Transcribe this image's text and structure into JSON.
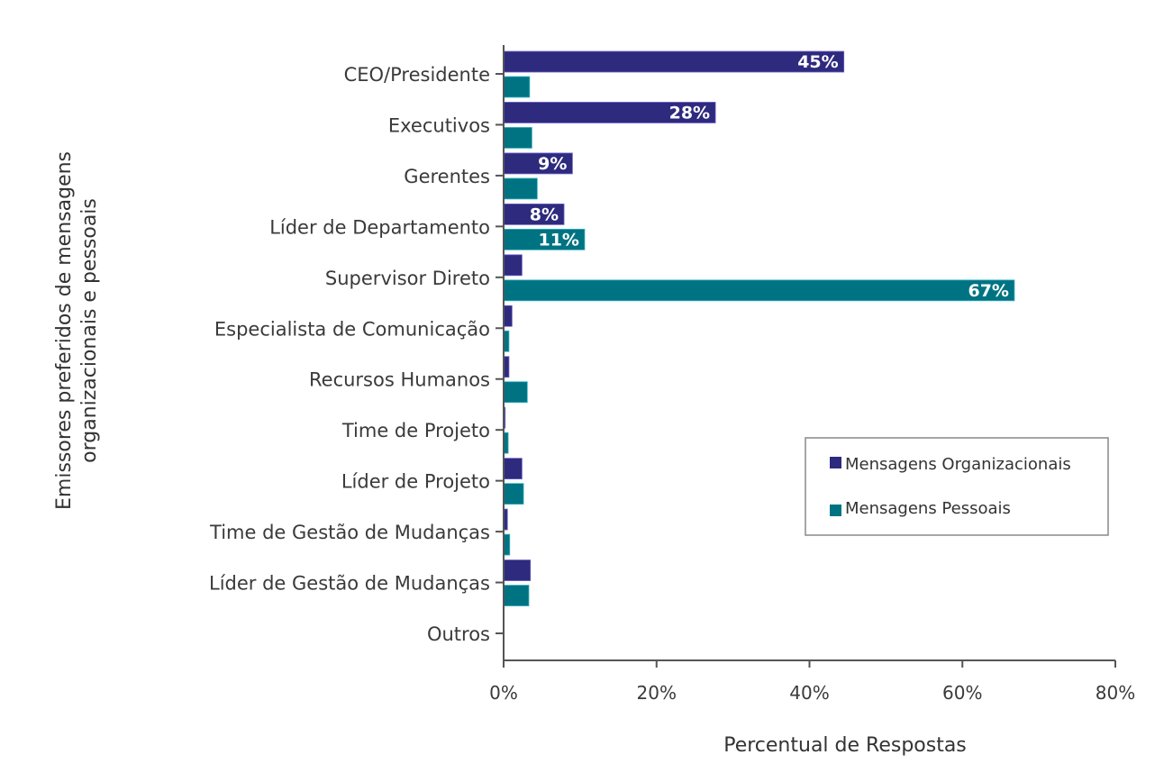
{
  "chart_data": {
    "type": "bar",
    "orientation": "horizontal",
    "title": "",
    "xlabel": "Percentual de Respostas",
    "ylabel": [
      "Emissores preferidos de mensagens",
      "organizacionais e pessoais"
    ],
    "xlim": [
      0,
      80
    ],
    "xticks": [
      0,
      20,
      40,
      60,
      80
    ],
    "xtick_labels": [
      "0%",
      "20%",
      "40%",
      "60%",
      "80%"
    ],
    "grid": false,
    "legend_position": "right",
    "categories": [
      "CEO/Presidente",
      "Executivos",
      "Gerentes",
      "Líder de Departamento",
      "Supervisor Direto",
      "Especialista de Comunicação",
      "Recursos Humanos",
      "Time de Projeto",
      "Líder de Projeto",
      "Time de Gestão de Mudanças",
      "Líder de Gestão de Mudanças",
      "Outros"
    ],
    "series": [
      {
        "name": "Mensagens Organizacionais",
        "color": "#2e2a7e",
        "values": [
          44.5,
          27.7,
          9,
          7.9,
          2.4,
          1.1,
          0.7,
          0.2,
          2.4,
          0.5,
          3.5,
          0
        ],
        "labels": [
          "45%",
          "28%",
          "9%",
          "8%",
          "",
          "",
          "",
          "",
          "",
          "",
          "",
          ""
        ]
      },
      {
        "name": "Mensagens Pessoais",
        "color": "#007382",
        "values": [
          3.4,
          3.7,
          4.4,
          10.6,
          66.8,
          0.7,
          3.1,
          0.6,
          2.6,
          0.8,
          3.3,
          0
        ],
        "labels": [
          "",
          "",
          "",
          "11%",
          "67%",
          "",
          "",
          "",
          "",
          "",
          "",
          ""
        ]
      }
    ]
  }
}
